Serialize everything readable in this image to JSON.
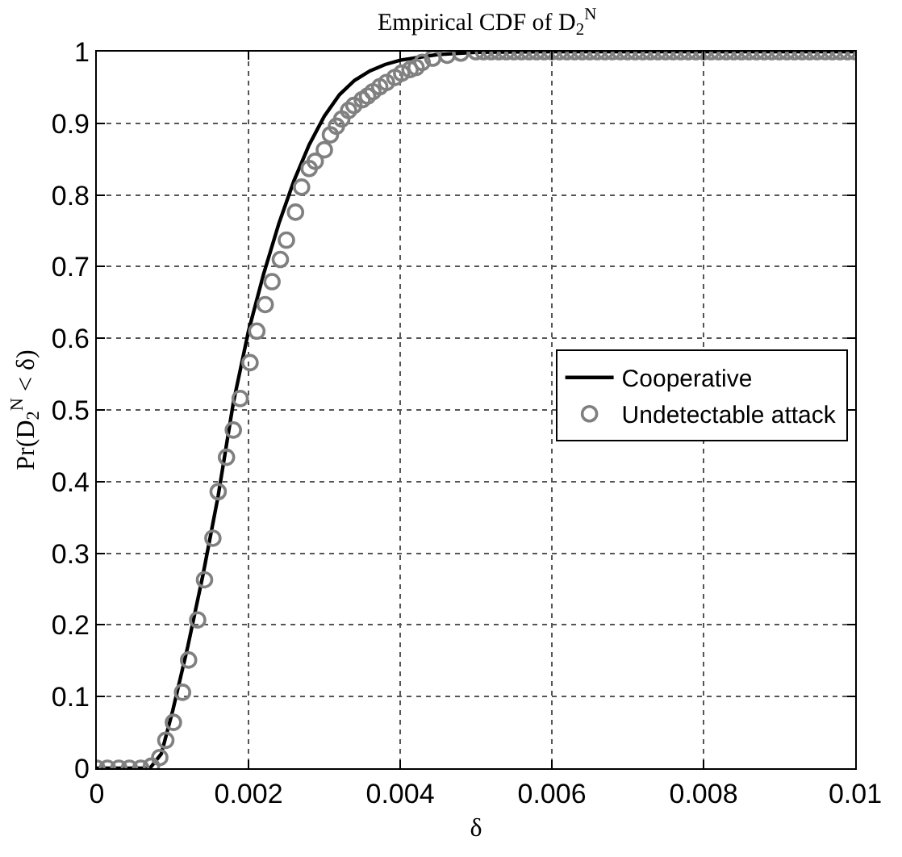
{
  "chart_data": {
    "type": "line",
    "title": "Empirical CDF of D$_{2}$$^{N}$",
    "xlabel": "δ",
    "ylabel": "Pr(D$_{2}$$^{N}$ < δ)",
    "xlim": [
      0,
      0.01
    ],
    "xticks": [
      0,
      0.002,
      0.004,
      0.006,
      0.008,
      0.01
    ],
    "ylim": [
      0,
      1
    ],
    "yticks": [
      0,
      0.1,
      0.2,
      0.3,
      0.4,
      0.5,
      0.6,
      0.7,
      0.8,
      0.9,
      1
    ],
    "grid": true,
    "legend": "right",
    "series": [
      {
        "name": "Cooperative",
        "color": "#000000",
        "marker": "none",
        "line_style": "solid",
        "x": [
          0,
          0.0007,
          0.00085,
          0.001,
          0.0012,
          0.0014,
          0.0016,
          0.0018,
          0.002,
          0.0022,
          0.0024,
          0.0026,
          0.0028,
          0.003,
          0.0032,
          0.0034,
          0.0036,
          0.0038,
          0.004,
          0.0045,
          0.005,
          0.006,
          0.01
        ],
        "values": [
          0,
          0,
          0.02,
          0.08,
          0.17,
          0.27,
          0.38,
          0.51,
          0.61,
          0.69,
          0.76,
          0.82,
          0.87,
          0.91,
          0.94,
          0.96,
          0.973,
          0.982,
          0.988,
          0.996,
          0.999,
          1,
          1
        ]
      },
      {
        "name": "Undetectable attack",
        "type": "scatter",
        "color": "#808080",
        "marker": "circle",
        "x": [
          0,
          0.00014,
          0.00029,
          0.00043,
          0.00058,
          0.00072,
          0.00083,
          0.00091,
          0.00101,
          0.00113,
          0.00121,
          0.00133,
          0.00142,
          0.00153,
          0.0016,
          0.00171,
          0.0018,
          0.00189,
          0.00202,
          0.00211,
          0.00222,
          0.00231,
          0.00242,
          0.0025,
          0.00262,
          0.0027,
          0.0028,
          0.00288,
          0.003,
          0.00308,
          0.00316,
          0.00323,
          0.00332,
          0.00339,
          0.0035,
          0.00357,
          0.00364,
          0.00373,
          0.00382,
          0.00393,
          0.00402,
          0.00413,
          0.00421,
          0.00429,
          0.00443,
          0.00462,
          0.0048,
          0.005,
          0.0051,
          0.0052,
          0.0053,
          0.0054,
          0.0055,
          0.0056,
          0.0057,
          0.0058,
          0.0059,
          0.006,
          0.0061,
          0.0062,
          0.0063,
          0.0064,
          0.0065,
          0.0066,
          0.0067,
          0.0068,
          0.0069,
          0.007,
          0.0071,
          0.0072,
          0.0073,
          0.0074,
          0.0075,
          0.0076,
          0.0077,
          0.0078,
          0.0079,
          0.008,
          0.0081,
          0.0082,
          0.0083,
          0.0084,
          0.0085,
          0.0086,
          0.0087,
          0.0088,
          0.0089,
          0.009,
          0.0091,
          0.0092,
          0.0093,
          0.0094,
          0.0095,
          0.0096,
          0.0097,
          0.0098,
          0.0099,
          0.01
        ],
        "values": [
          0,
          0,
          0,
          0,
          0,
          0.003,
          0.015,
          0.039,
          0.064,
          0.106,
          0.151,
          0.207,
          0.263,
          0.321,
          0.386,
          0.434,
          0.472,
          0.516,
          0.566,
          0.61,
          0.647,
          0.679,
          0.71,
          0.737,
          0.776,
          0.811,
          0.837,
          0.847,
          0.863,
          0.884,
          0.896,
          0.906,
          0.918,
          0.925,
          0.933,
          0.938,
          0.944,
          0.951,
          0.957,
          0.964,
          0.97,
          0.975,
          0.978,
          0.985,
          0.991,
          0.995,
          0.998,
          1,
          1,
          1,
          1,
          1,
          1,
          1,
          1,
          1,
          1,
          1,
          1,
          1,
          1,
          1,
          1,
          1,
          1,
          1,
          1,
          1,
          1,
          1,
          1,
          1,
          1,
          1,
          1,
          1,
          1,
          1,
          1,
          1,
          1,
          1,
          1,
          1,
          1,
          1,
          1,
          1,
          1,
          1,
          1,
          1,
          1,
          1,
          1,
          1,
          1,
          1
        ]
      }
    ]
  }
}
